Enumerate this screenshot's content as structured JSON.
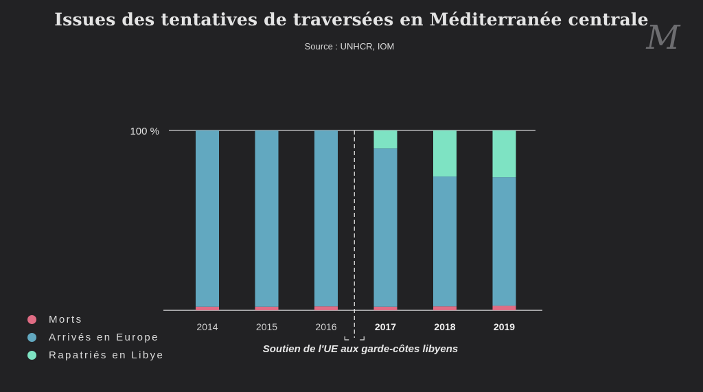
{
  "header": {
    "title": "Issues des tentatives de traversées en Méditerranée centrale",
    "source": "Source : UNHCR, IOM",
    "logo_text": "M"
  },
  "chart_data": {
    "type": "bar",
    "stacked": true,
    "percent": true,
    "categories": [
      "2014",
      "2015",
      "2016",
      "2017",
      "2018",
      "2019"
    ],
    "bold_categories": [
      "2017",
      "2018",
      "2019"
    ],
    "y_tick_label": "100 %",
    "ylim": [
      0,
      100
    ],
    "series": [
      {
        "name": "Morts",
        "color": "#e06c84",
        "values": [
          2,
          2,
          2.2,
          2,
          2.2,
          2.5
        ]
      },
      {
        "name": "Arrivés en Europe",
        "color": "#62a8c0",
        "values": [
          98,
          98,
          97.8,
          88,
          72.2,
          71.5
        ]
      },
      {
        "name": "Rapatriés en Libye",
        "color": "#7ee3c3",
        "values": [
          0,
          0,
          0,
          10,
          25.6,
          26
        ]
      }
    ],
    "annotation": "Soutien de l'UE aux garde-côtes libyens",
    "divider_after_category": "2016",
    "legend_position": "bottom-left"
  }
}
